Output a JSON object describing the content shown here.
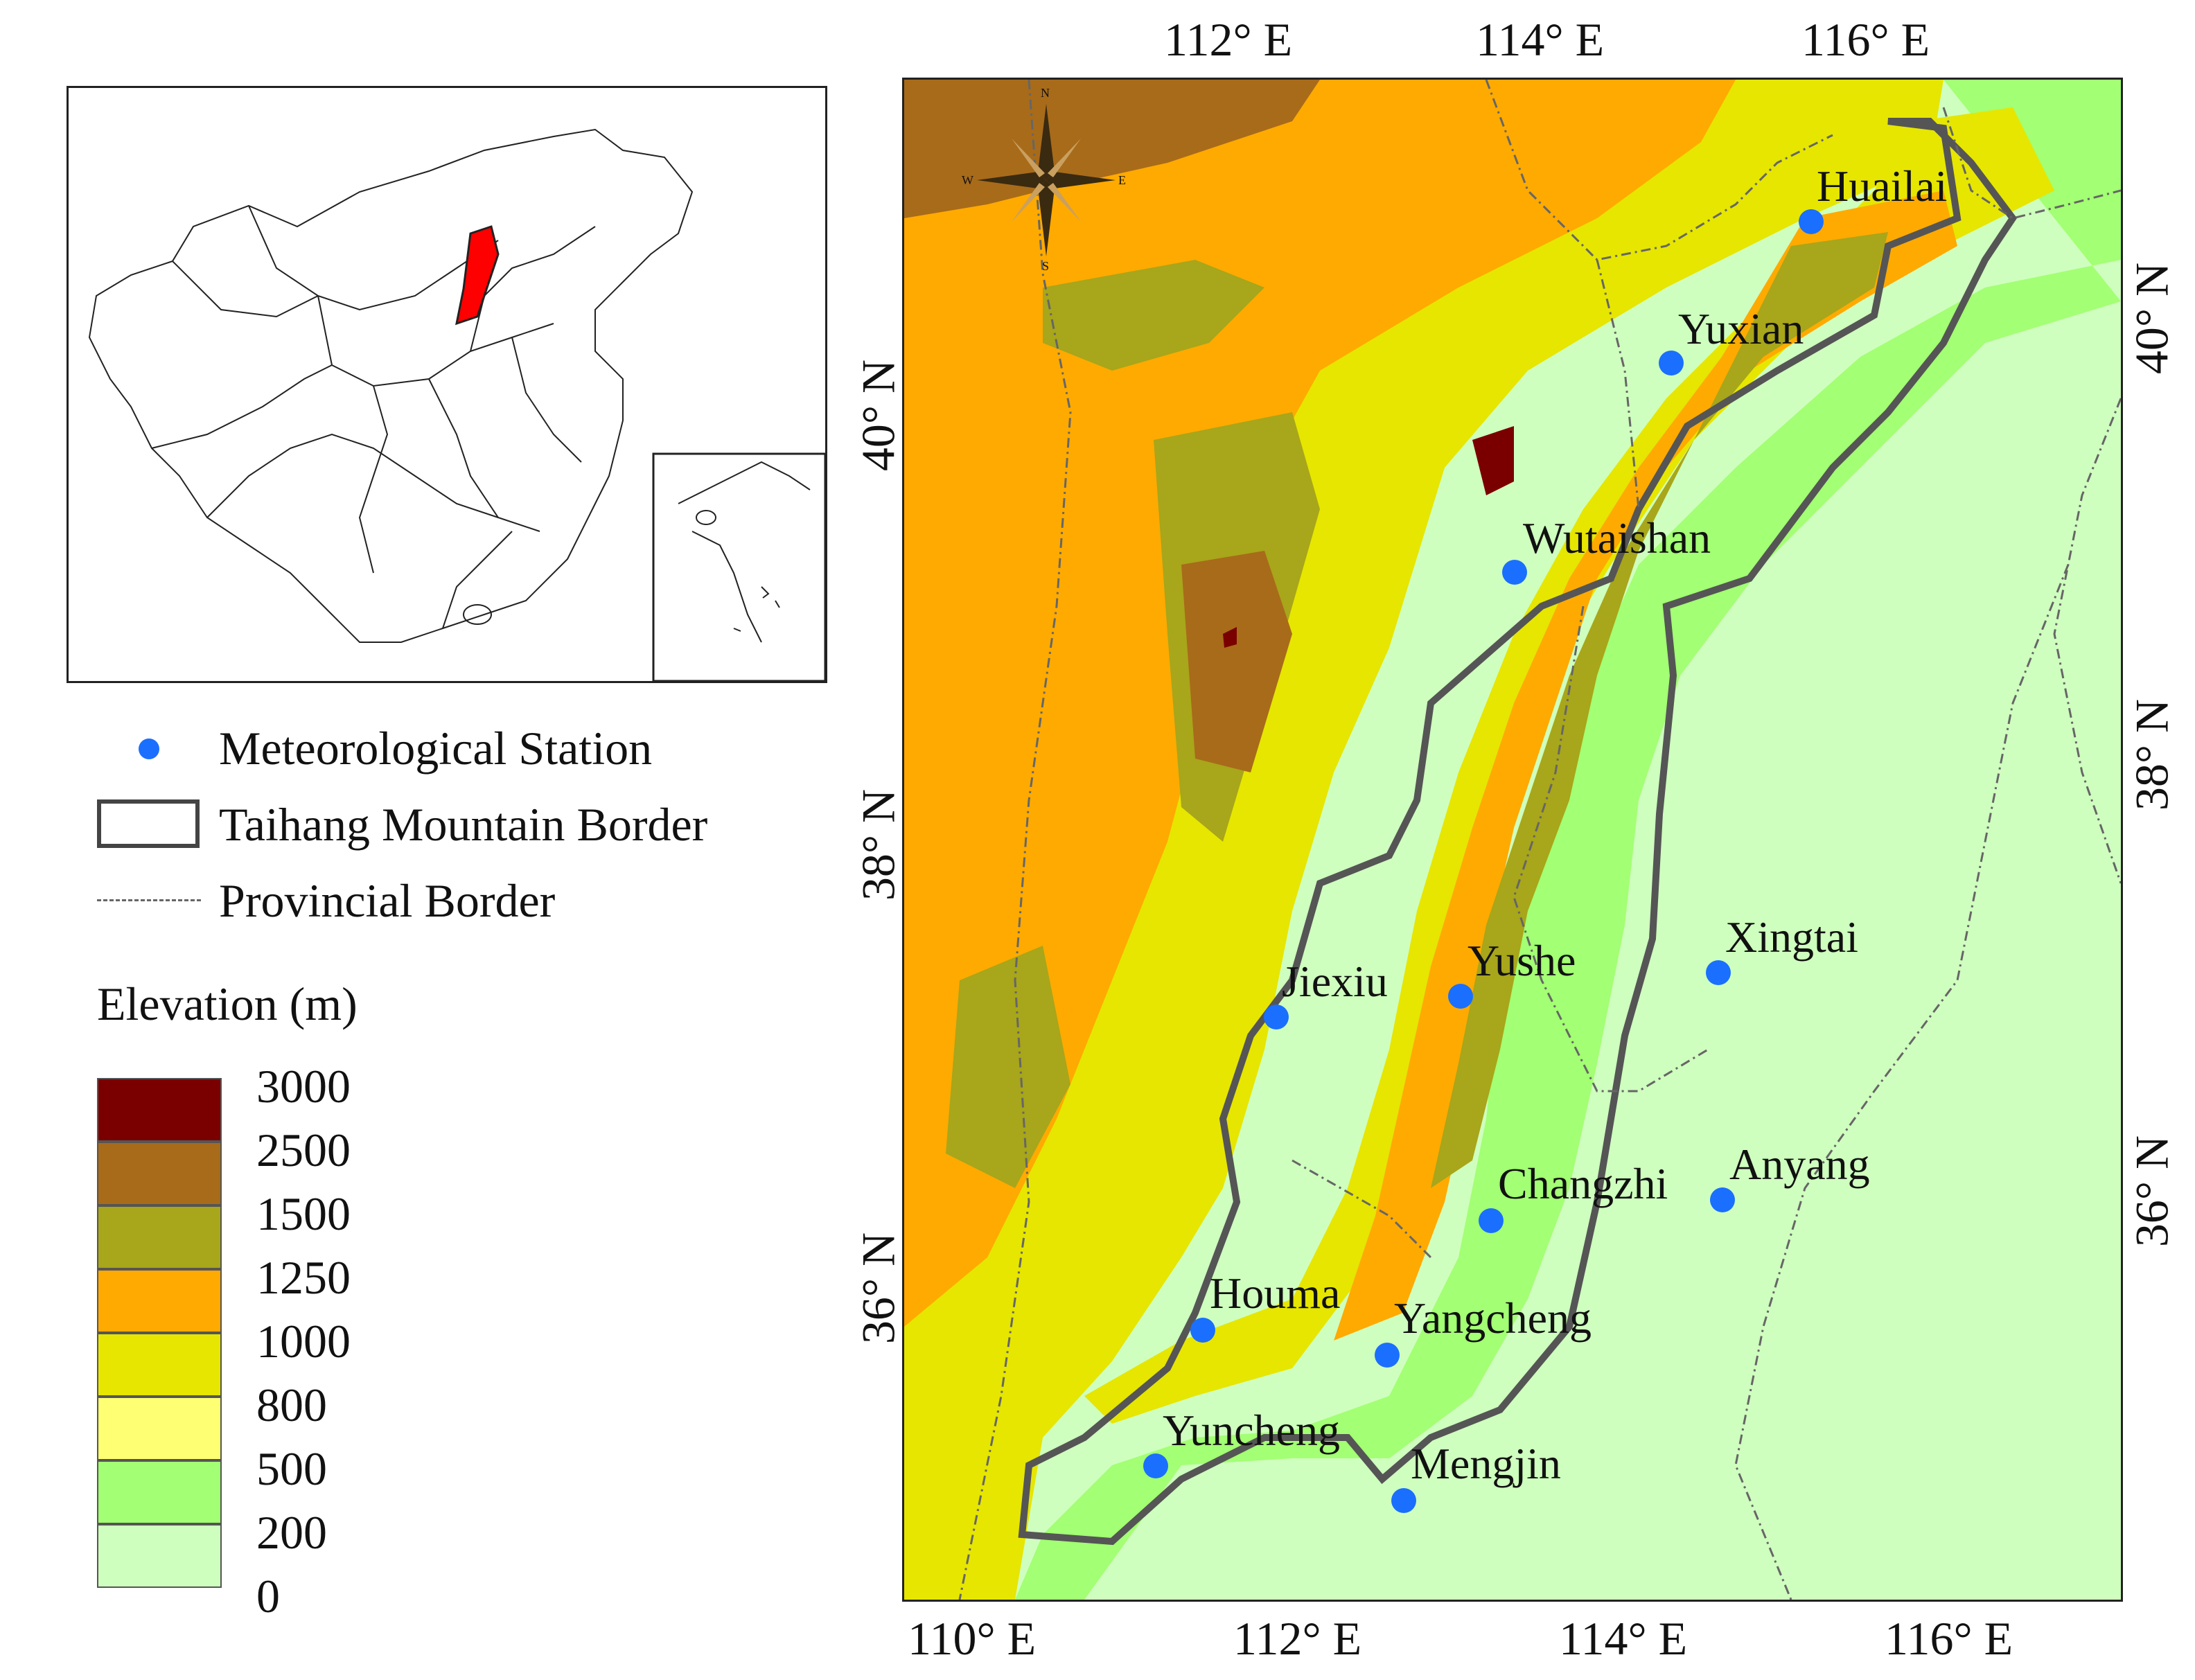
{
  "inset": {
    "highlight_color": "#ff0000",
    "description_icon": "china-map-icon"
  },
  "legend": {
    "station_label": "Meteorological Station",
    "station_color": "#1a6fff",
    "border_label": "Taihang Mountain Border",
    "province_label": "Provincial Border",
    "elevation_title": "Elevation (m)",
    "elevation_breaks": [
      "3000",
      "2500",
      "1500",
      "1250",
      "1000",
      "800",
      "500",
      "200",
      "0"
    ],
    "elevation_colors": [
      "#7a0000",
      "#a86b1a",
      "#a8a61a",
      "#ffaa00",
      "#e6e600",
      "#ffff73",
      "#a3ff73",
      "#cfffbf"
    ]
  },
  "axes": {
    "top_ticks": [
      "112° E",
      "114° E",
      "116° E"
    ],
    "bottom_ticks": [
      "110° E",
      "112° E",
      "114° E",
      "116° E"
    ],
    "left_ticks": [
      "40° N",
      "38° N",
      "36° N"
    ],
    "right_ticks": [
      "40° N",
      "38° N",
      "36° N"
    ]
  },
  "compass": {
    "n": "N",
    "s": "S",
    "e": "E",
    "w": "W"
  },
  "stations": [
    {
      "name": "Huailai"
    },
    {
      "name": "Yuxian"
    },
    {
      "name": "Wutaishan"
    },
    {
      "name": "Jiexiu"
    },
    {
      "name": "Yushe"
    },
    {
      "name": "Xingtai"
    },
    {
      "name": "Changzhi"
    },
    {
      "name": "Anyang"
    },
    {
      "name": "Houma"
    },
    {
      "name": "Yangcheng"
    },
    {
      "name": "Yuncheng"
    },
    {
      "name": "Mengjin"
    }
  ]
}
